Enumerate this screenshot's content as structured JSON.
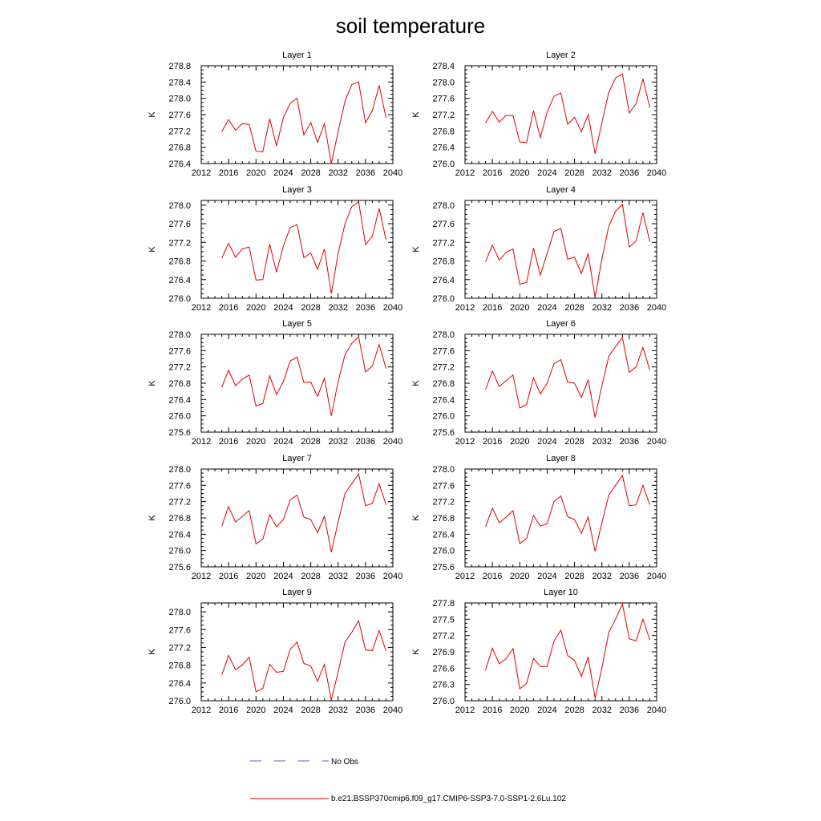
{
  "page": {
    "title": "soil temperature"
  },
  "chart_data": [
    {
      "type": "line",
      "title": "Layer 1",
      "ylabel": "K",
      "xlim": [
        2012,
        2040
      ],
      "ylim": [
        276.4,
        278.8
      ],
      "xticks": [
        2012,
        2016,
        2020,
        2024,
        2028,
        2032,
        2036,
        2040
      ],
      "yticks": [
        "276.4",
        "276.8",
        "277.2",
        "277.6",
        "278.0",
        "278.4",
        "278.8"
      ],
      "x": [
        2015,
        2016,
        2017,
        2018,
        2019,
        2020,
        2021,
        2022,
        2023,
        2024,
        2025,
        2026,
        2027,
        2028,
        2029,
        2030,
        2031,
        2032,
        2033,
        2034,
        2035,
        2036,
        2037,
        2038,
        2039
      ],
      "series": [
        {
          "values": [
            277.18,
            277.48,
            277.22,
            277.38,
            277.36,
            276.7,
            276.69,
            277.5,
            276.83,
            277.53,
            277.88,
            278.0,
            277.1,
            277.41,
            276.92,
            277.38,
            276.4,
            277.18,
            277.93,
            278.34,
            278.4,
            277.4,
            277.7,
            278.32,
            277.52
          ]
        }
      ]
    },
    {
      "type": "line",
      "title": "Layer 2",
      "ylabel": "K",
      "xlim": [
        2012,
        2040
      ],
      "ylim": [
        276.0,
        278.4
      ],
      "xticks": [
        2012,
        2016,
        2020,
        2024,
        2028,
        2032,
        2036,
        2040
      ],
      "yticks": [
        "276.0",
        "276.4",
        "276.8",
        "277.2",
        "277.6",
        "278.0",
        "278.4"
      ],
      "x": [
        2015,
        2016,
        2017,
        2018,
        2019,
        2020,
        2021,
        2022,
        2023,
        2024,
        2025,
        2026,
        2027,
        2028,
        2029,
        2030,
        2031,
        2032,
        2033,
        2034,
        2035,
        2036,
        2037,
        2038,
        2039
      ],
      "series": [
        {
          "values": [
            277.0,
            277.28,
            277.02,
            277.18,
            277.18,
            276.53,
            276.52,
            277.3,
            276.64,
            277.26,
            277.65,
            277.73,
            276.96,
            277.14,
            276.78,
            277.2,
            276.24,
            277.0,
            277.75,
            278.1,
            278.2,
            277.24,
            277.47,
            278.08,
            277.37
          ]
        }
      ]
    },
    {
      "type": "line",
      "title": "Layer 3",
      "ylabel": "K",
      "xlim": [
        2012,
        2040
      ],
      "ylim": [
        276.0,
        278.1
      ],
      "xticks": [
        2012,
        2016,
        2020,
        2024,
        2028,
        2032,
        2036,
        2040
      ],
      "yticks": [
        "276.0",
        "276.4",
        "276.8",
        "277.2",
        "277.6",
        "278.0"
      ],
      "x": [
        2015,
        2016,
        2017,
        2018,
        2019,
        2020,
        2021,
        2022,
        2023,
        2024,
        2025,
        2026,
        2027,
        2028,
        2029,
        2030,
        2031,
        2032,
        2033,
        2034,
        2035,
        2036,
        2037,
        2038,
        2039
      ],
      "series": [
        {
          "values": [
            276.86,
            277.18,
            276.88,
            277.06,
            277.1,
            276.39,
            276.4,
            277.16,
            276.56,
            277.12,
            277.52,
            277.58,
            276.87,
            276.97,
            276.62,
            277.06,
            276.1,
            276.96,
            277.6,
            277.97,
            278.07,
            277.15,
            277.33,
            277.93,
            277.25
          ]
        }
      ]
    },
    {
      "type": "line",
      "title": "Layer 4",
      "ylabel": "K",
      "xlim": [
        2012,
        2040
      ],
      "ylim": [
        276.0,
        278.1
      ],
      "xticks": [
        2012,
        2016,
        2020,
        2024,
        2028,
        2032,
        2036,
        2040
      ],
      "yticks": [
        "276.0",
        "276.4",
        "276.8",
        "277.2",
        "277.6",
        "278.0"
      ],
      "x": [
        2015,
        2016,
        2017,
        2018,
        2019,
        2020,
        2021,
        2022,
        2023,
        2024,
        2025,
        2026,
        2027,
        2028,
        2029,
        2030,
        2031,
        2032,
        2033,
        2034,
        2035,
        2036,
        2037,
        2038,
        2039
      ],
      "series": [
        {
          "values": [
            276.78,
            277.14,
            276.82,
            276.98,
            277.06,
            276.3,
            276.34,
            277.08,
            276.5,
            276.96,
            277.43,
            277.5,
            276.84,
            276.88,
            276.53,
            276.96,
            276.02,
            276.84,
            277.55,
            277.87,
            278.01,
            277.1,
            277.23,
            277.84,
            277.21
          ]
        }
      ]
    },
    {
      "type": "line",
      "title": "Layer 5",
      "ylabel": "K",
      "xlim": [
        2012,
        2040
      ],
      "ylim": [
        275.6,
        278.0
      ],
      "xticks": [
        2012,
        2016,
        2020,
        2024,
        2028,
        2032,
        2036,
        2040
      ],
      "yticks": [
        "275.6",
        "276.0",
        "276.4",
        "276.8",
        "277.2",
        "277.6",
        "278.0"
      ],
      "x": [
        2015,
        2016,
        2017,
        2018,
        2019,
        2020,
        2021,
        2022,
        2023,
        2024,
        2025,
        2026,
        2027,
        2028,
        2029,
        2030,
        2031,
        2032,
        2033,
        2034,
        2035,
        2036,
        2037,
        2038,
        2039
      ],
      "series": [
        {
          "values": [
            276.7,
            277.12,
            276.74,
            276.9,
            277.0,
            276.24,
            276.3,
            276.98,
            276.52,
            276.84,
            277.35,
            277.44,
            276.82,
            276.83,
            276.48,
            276.92,
            276.0,
            276.84,
            277.5,
            277.78,
            277.94,
            277.08,
            277.22,
            277.75,
            277.16
          ]
        }
      ]
    },
    {
      "type": "line",
      "title": "Layer 6",
      "ylabel": "K",
      "xlim": [
        2012,
        2040
      ],
      "ylim": [
        275.6,
        278.0
      ],
      "xticks": [
        2012,
        2016,
        2020,
        2024,
        2028,
        2032,
        2036,
        2040
      ],
      "yticks": [
        "275.6",
        "276.0",
        "276.4",
        "276.8",
        "277.2",
        "277.6",
        "278.0"
      ],
      "x": [
        2015,
        2016,
        2017,
        2018,
        2019,
        2020,
        2021,
        2022,
        2023,
        2024,
        2025,
        2026,
        2027,
        2028,
        2029,
        2030,
        2031,
        2032,
        2033,
        2034,
        2035,
        2036,
        2037,
        2038,
        2039
      ],
      "series": [
        {
          "values": [
            276.64,
            277.1,
            276.72,
            276.86,
            277.0,
            276.19,
            276.28,
            276.93,
            276.54,
            276.8,
            277.28,
            277.38,
            276.83,
            276.8,
            276.45,
            276.88,
            275.96,
            276.74,
            277.46,
            277.7,
            277.92,
            277.07,
            277.2,
            277.68,
            277.12
          ]
        }
      ]
    },
    {
      "type": "line",
      "title": "Layer 7",
      "ylabel": "K",
      "xlim": [
        2012,
        2040
      ],
      "ylim": [
        275.6,
        278.0
      ],
      "xticks": [
        2012,
        2016,
        2020,
        2024,
        2028,
        2032,
        2036,
        2040
      ],
      "yticks": [
        "275.6",
        "276.0",
        "276.4",
        "276.8",
        "277.2",
        "277.6",
        "278.0"
      ],
      "x": [
        2015,
        2016,
        2017,
        2018,
        2019,
        2020,
        2021,
        2022,
        2023,
        2024,
        2025,
        2026,
        2027,
        2028,
        2029,
        2030,
        2031,
        2032,
        2033,
        2034,
        2035,
        2036,
        2037,
        2038,
        2039
      ],
      "series": [
        {
          "values": [
            276.6,
            277.08,
            276.7,
            276.84,
            276.98,
            276.16,
            276.28,
            276.88,
            276.58,
            276.76,
            277.24,
            277.36,
            276.82,
            276.76,
            276.44,
            276.84,
            275.96,
            276.7,
            277.4,
            277.64,
            277.88,
            277.1,
            277.16,
            277.64,
            277.12
          ]
        }
      ]
    },
    {
      "type": "line",
      "title": "Layer 8",
      "ylabel": "K",
      "xlim": [
        2012,
        2040
      ],
      "ylim": [
        275.6,
        278.0
      ],
      "xticks": [
        2012,
        2016,
        2020,
        2024,
        2028,
        2032,
        2036,
        2040
      ],
      "yticks": [
        "275.6",
        "276.0",
        "276.4",
        "276.8",
        "277.2",
        "277.6",
        "278.0"
      ],
      "x": [
        2015,
        2016,
        2017,
        2018,
        2019,
        2020,
        2021,
        2022,
        2023,
        2024,
        2025,
        2026,
        2027,
        2028,
        2029,
        2030,
        2031,
        2032,
        2033,
        2034,
        2035,
        2036,
        2037,
        2038,
        2039
      ],
      "series": [
        {
          "values": [
            276.58,
            277.04,
            276.68,
            276.82,
            276.98,
            276.17,
            276.3,
            276.86,
            276.6,
            276.66,
            277.2,
            277.34,
            276.83,
            276.76,
            276.42,
            276.82,
            275.98,
            276.68,
            277.36,
            277.6,
            277.84,
            277.1,
            277.12,
            277.6,
            277.12
          ]
        }
      ]
    },
    {
      "type": "line",
      "title": "Layer 9",
      "ylabel": "K",
      "xlim": [
        2012,
        2040
      ],
      "ylim": [
        276.0,
        278.2
      ],
      "xticks": [
        2012,
        2016,
        2020,
        2024,
        2028,
        2032,
        2036,
        2040
      ],
      "yticks": [
        "276.0",
        "276.4",
        "276.8",
        "277.2",
        "277.6",
        "278.0"
      ],
      "x": [
        2015,
        2016,
        2017,
        2018,
        2019,
        2020,
        2021,
        2022,
        2023,
        2024,
        2025,
        2026,
        2027,
        2028,
        2029,
        2030,
        2031,
        2032,
        2033,
        2034,
        2035,
        2036,
        2037,
        2038,
        2039
      ],
      "series": [
        {
          "values": [
            276.58,
            277.02,
            276.7,
            276.8,
            276.98,
            276.2,
            276.28,
            276.82,
            276.64,
            276.66,
            277.16,
            277.32,
            276.84,
            276.78,
            276.44,
            276.82,
            276.02,
            276.64,
            277.32,
            277.54,
            277.8,
            277.14,
            277.13,
            277.58,
            277.12
          ]
        }
      ]
    },
    {
      "type": "line",
      "title": "Layer 10",
      "ylabel": "K",
      "xlim": [
        2012,
        2040
      ],
      "ylim": [
        276.0,
        277.8
      ],
      "xticks": [
        2012,
        2016,
        2020,
        2024,
        2028,
        2032,
        2036,
        2040
      ],
      "yticks": [
        "276.0",
        "276.3",
        "276.6",
        "276.9",
        "277.2",
        "277.5",
        "277.8"
      ],
      "x": [
        2015,
        2016,
        2017,
        2018,
        2019,
        2020,
        2021,
        2022,
        2023,
        2024,
        2025,
        2026,
        2027,
        2028,
        2029,
        2030,
        2031,
        2032,
        2033,
        2034,
        2035,
        2036,
        2037,
        2038,
        2039
      ],
      "series": [
        {
          "values": [
            276.56,
            276.97,
            276.68,
            276.77,
            276.96,
            276.22,
            276.32,
            276.78,
            276.63,
            276.63,
            277.1,
            277.3,
            276.83,
            276.74,
            276.45,
            276.8,
            276.05,
            276.6,
            277.26,
            277.5,
            277.78,
            277.14,
            277.1,
            277.5,
            277.12
          ]
        }
      ]
    }
  ],
  "legend": [
    {
      "label": "No Obs",
      "color": "#5560c8",
      "style": "dashed"
    },
    {
      "label": "b.e21.BSSP370cmip6.f09_g17.CMIP6-SSP3-7.0-SSP1-2.6Lu.102",
      "color": "#e00000",
      "style": "solid"
    }
  ],
  "colors": {
    "line": "#e00000",
    "axis": "#000000"
  }
}
